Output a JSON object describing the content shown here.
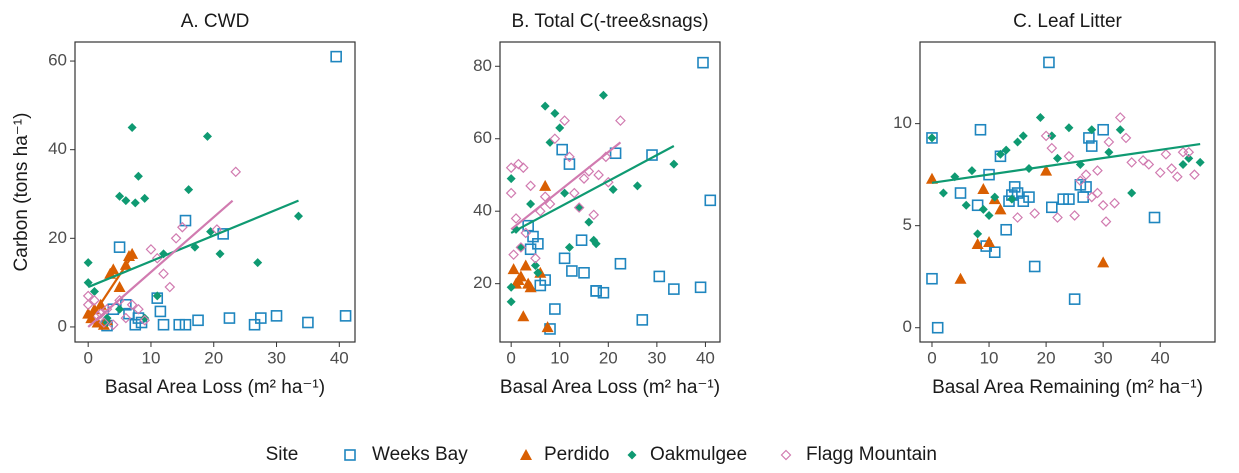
{
  "chart_data": [
    {
      "type": "scatter",
      "title": "A. CWD",
      "x_label": "Basal Area Loss (m² ha⁻¹)",
      "y_label": "Carbon (tons ha⁻¹)",
      "xlim": [
        -2.1,
        42.5
      ],
      "ylim": [
        -3.4,
        64.3
      ],
      "xticks": [
        0,
        10,
        20,
        30,
        40
      ],
      "yticks": [
        0,
        20,
        40,
        60
      ],
      "series": [
        {
          "name": "Weeks Bay",
          "color": "#1f86bf",
          "marker": "square-open",
          "x": [
            39.5,
            41,
            35,
            30,
            27.5,
            26.5,
            22.5,
            17.5,
            15.5,
            14.5,
            12,
            11.5,
            8.5,
            7.5,
            6.5,
            5,
            4,
            3,
            15.5,
            21.5,
            11,
            8,
            6
          ],
          "y": [
            61,
            2.5,
            1,
            2.5,
            2,
            0.5,
            2,
            1.5,
            0.5,
            0.5,
            0.5,
            3.5,
            1,
            0.5,
            3,
            18,
            4,
            0.3,
            24,
            21,
            6.5,
            2,
            5
          ]
        },
        {
          "name": "Perdido",
          "color": "#d95f02",
          "marker": "triangle",
          "x": [
            0.5,
            1,
            2,
            3,
            4,
            5,
            6,
            6.5,
            7,
            1.5,
            3.5,
            0,
            2.5
          ],
          "y": [
            2,
            4,
            5,
            1.5,
            13,
            9,
            14,
            16,
            16.5,
            1,
            12,
            3,
            0.5
          ],
          "fit": {
            "x": [
              0,
              7
            ],
            "y": [
              1,
              16
            ]
          }
        },
        {
          "name": "Oakmulgee",
          "color": "#0f9a72",
          "marker": "diamond",
          "x": [
            0,
            0,
            1,
            3,
            5,
            6,
            7,
            7.5,
            8,
            9,
            9,
            11,
            12,
            16,
            17,
            19,
            19.5,
            21,
            27,
            33.5,
            5,
            3
          ],
          "y": [
            10,
            14.5,
            8,
            1,
            29.5,
            28.5,
            45,
            28,
            34,
            29,
            2,
            7,
            16.5,
            31,
            18,
            43,
            21.5,
            16.5,
            14.5,
            25,
            4,
            2
          ],
          "fit": {
            "x": [
              0,
              33.5
            ],
            "y": [
              9,
              28.5
            ]
          }
        },
        {
          "name": "Flagg Mountain",
          "color": "#d17bb0",
          "marker": "diamond-open",
          "x": [
            0,
            0,
            1,
            1.5,
            2,
            3,
            5,
            6,
            8,
            9,
            10,
            11,
            12,
            13,
            14,
            15,
            20.5,
            23.5,
            4,
            7,
            2.5
          ],
          "y": [
            5,
            7,
            6,
            2.5,
            3,
            4,
            6,
            2,
            4,
            1.5,
            17.5,
            15.5,
            12,
            9,
            20,
            22.5,
            22,
            35,
            0.5,
            5,
            1
          ],
          "fit": {
            "x": [
              0,
              23
            ],
            "y": [
              0,
              28.5
            ]
          }
        }
      ]
    },
    {
      "type": "scatter",
      "title": "B. Total C(-tree&snags)",
      "x_label": "Basal Area Loss (m² ha⁻¹)",
      "xlim": [
        -2.3,
        43
      ],
      "ylim": [
        3.9,
        86.7
      ],
      "xticks": [
        0,
        10,
        20,
        30,
        40
      ],
      "yticks": [
        20,
        40,
        60,
        80
      ],
      "series": [
        {
          "name": "Weeks Bay",
          "color": "#1f86bf",
          "marker": "square-open",
          "x": [
            39.5,
            41,
            33.5,
            30.5,
            27,
            22.5,
            21.5,
            19,
            17.5,
            17.5,
            15,
            14.5,
            12.5,
            12,
            11,
            9,
            8,
            7,
            6,
            5.5,
            4,
            3.5,
            4.5,
            10.5,
            29,
            39
          ],
          "y": [
            81,
            43,
            18.5,
            22,
            10,
            25.5,
            56,
            17.5,
            18,
            18,
            23,
            32,
            23.5,
            53,
            27,
            13,
            7.5,
            21,
            19.5,
            31,
            29.5,
            36,
            33,
            57,
            55.5,
            19
          ]
        },
        {
          "name": "Perdido",
          "color": "#d95f02",
          "marker": "triangle",
          "x": [
            0.5,
            1,
            2,
            2.5,
            3,
            3.5,
            4,
            6,
            7,
            7.5,
            1.5
          ],
          "y": [
            24,
            20,
            22,
            11,
            25,
            20,
            19,
            23,
            47,
            8,
            21
          ]
        },
        {
          "name": "Oakmulgee",
          "color": "#0f9a72",
          "marker": "diamond",
          "x": [
            0,
            0,
            0,
            1,
            2,
            4,
            5,
            7,
            8,
            9,
            10,
            11,
            12,
            14,
            16,
            17,
            17.5,
            19,
            21,
            26,
            33.5,
            5.5
          ],
          "y": [
            15,
            19,
            49,
            35,
            30,
            42,
            25,
            69,
            59,
            67,
            63,
            45,
            30,
            41,
            37,
            32,
            31,
            72,
            46,
            47,
            53,
            23
          ],
          "fit": {
            "x": [
              0,
              33.5
            ],
            "y": [
              34,
              58
            ]
          }
        },
        {
          "name": "Flagg Mountain",
          "color": "#d17bb0",
          "marker": "diamond-open",
          "x": [
            0,
            0,
            0.5,
            1,
            1.5,
            2,
            2.5,
            3,
            4,
            5,
            6,
            7,
            8,
            9,
            11,
            12,
            13,
            14,
            15,
            16,
            17,
            18,
            22.5,
            19.5,
            20
          ],
          "y": [
            52,
            45,
            28,
            38,
            53,
            30,
            52,
            34,
            47,
            27,
            40,
            44,
            42,
            60,
            65,
            55,
            45,
            41,
            49,
            51,
            39,
            50,
            65,
            55,
            48
          ],
          "fit": {
            "x": [
              0,
              22.5
            ],
            "y": [
              35,
              59
            ]
          }
        }
      ]
    },
    {
      "type": "scatter",
      "title": "C. Leaf Litter",
      "x_label": "Basal Area Remaining (m² ha⁻¹)",
      "xlim": [
        -2.1,
        49.6
      ],
      "ylim": [
        -0.7,
        14
      ],
      "xticks": [
        0,
        10,
        20,
        30,
        40
      ],
      "yticks": [
        0,
        5,
        10
      ],
      "series": [
        {
          "name": "Weeks Bay",
          "color": "#1f86bf",
          "marker": "square-open",
          "x": [
            0,
            0,
            1,
            5,
            8,
            8.5,
            9.5,
            10,
            11,
            12,
            13,
            13.5,
            14,
            14.5,
            15,
            16,
            17,
            18,
            20.5,
            21,
            23,
            24,
            25,
            26,
            26.5,
            27,
            27.5,
            28,
            30,
            39
          ],
          "y": [
            9.3,
            2.4,
            0,
            6.6,
            6,
            9.7,
            4,
            7.5,
            3.7,
            8.4,
            4.8,
            6.2,
            6.5,
            6.9,
            6.6,
            6.2,
            6.4,
            3,
            13,
            5.9,
            6.3,
            6.3,
            1.4,
            7,
            6.4,
            6.9,
            9.3,
            8.9,
            9.7,
            5.4
          ]
        },
        {
          "name": "Perdido",
          "color": "#d95f02",
          "marker": "triangle",
          "x": [
            0,
            5,
            8,
            9,
            10,
            11,
            12,
            20,
            30
          ],
          "y": [
            7.3,
            2.4,
            4.1,
            6.8,
            4.2,
            6.3,
            5.8,
            7.7,
            3.2
          ]
        },
        {
          "name": "Oakmulgee",
          "color": "#0f9a72",
          "marker": "diamond",
          "x": [
            0,
            2,
            4,
            6,
            7,
            8,
            9,
            10,
            11,
            12,
            13,
            14,
            15,
            16,
            17,
            19,
            21,
            22,
            24,
            26,
            28,
            31,
            35,
            44,
            45,
            47,
            33
          ],
          "y": [
            9.3,
            6.6,
            7.4,
            6,
            7.7,
            4.6,
            5.8,
            5.5,
            6.4,
            8.5,
            8.7,
            6.3,
            9.1,
            9.4,
            7.8,
            10.3,
            9.4,
            8.3,
            9.8,
            8,
            9.7,
            8.6,
            6.6,
            8,
            8.3,
            8.1,
            9.7
          ],
          "fit": {
            "x": [
              0,
              47
            ],
            "y": [
              7.1,
              9.0
            ]
          }
        },
        {
          "name": "Flagg Mountain",
          "color": "#d17bb0",
          "marker": "diamond-open",
          "x": [
            15,
            18,
            20,
            22,
            24,
            25,
            26,
            27,
            28,
            29,
            30,
            30.5,
            31,
            32,
            33,
            34,
            35,
            37,
            38,
            40,
            41,
            42,
            43,
            44,
            45,
            46,
            21,
            29
          ],
          "y": [
            5.4,
            5.6,
            9.4,
            5.4,
            8.4,
            5.5,
            7.2,
            7.5,
            6.4,
            7.7,
            6,
            5.2,
            9.1,
            6.1,
            10.3,
            9.3,
            8.1,
            8.2,
            8,
            7.6,
            8.5,
            7.8,
            7.4,
            8.6,
            8.6,
            7.5,
            8.8,
            6.6
          ]
        }
      ]
    }
  ],
  "legend": {
    "title": "Site"
  }
}
